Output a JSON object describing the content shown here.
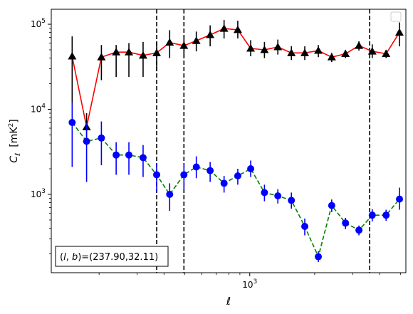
{
  "chart_data": {
    "type": "scatter",
    "xlabel": "ℓ",
    "xscale": "log",
    "xlim": [
      120,
      5300
    ],
    "xticks": [
      {
        "value": 1000,
        "base": "10",
        "exp": "3"
      }
    ],
    "ylabel": {
      "base": "C",
      "sub": "ℓ",
      "unit_pre": "[mK",
      "unit_sup": "2",
      "unit_post": "]"
    },
    "yscale": "log",
    "ylim": [
      120,
      150000
    ],
    "yticks": [
      {
        "value": 1000,
        "base": "10",
        "exp": "3"
      },
      {
        "value": 10000,
        "base": "10",
        "exp": "4"
      },
      {
        "value": 100000,
        "base": "10",
        "exp": "5"
      }
    ],
    "vlines": [
      370,
      495,
      3600
    ],
    "annotation": {
      "prefix": "(",
      "l": "l",
      "mid": ", ",
      "b": "b",
      "suffix": ")=(237.90,32.11)"
    },
    "legend": "top-right",
    "series": [
      {
        "marker": "triangle",
        "color": "#000000",
        "line_color": "#ff0000",
        "line_style": "solid",
        "x": [
          150,
          175,
          205,
          240,
          275,
          320,
          370,
          425,
          495,
          565,
          655,
          760,
          880,
          1010,
          1170,
          1350,
          1560,
          1800,
          2080,
          2400,
          2780,
          3210,
          3700,
          4290,
          4950
        ],
        "y": [
          42000,
          6200,
          41000,
          47000,
          47000,
          43000,
          46000,
          61000,
          56000,
          64000,
          75000,
          89000,
          86000,
          52000,
          50000,
          54000,
          46000,
          46000,
          49000,
          41000,
          45000,
          56000,
          48000,
          45000,
          80000
        ],
        "y_low": [
          12000,
          4000,
          22000,
          24000,
          24000,
          24000,
          28000,
          40000,
          41000,
          48000,
          55000,
          68000,
          68000,
          42000,
          40000,
          44000,
          38000,
          38000,
          41000,
          36000,
          40000,
          49000,
          40000,
          40000,
          55000
        ],
        "y_high": [
          72000,
          9000,
          57000,
          57000,
          60000,
          62000,
          62000,
          85000,
          75000,
          82000,
          97000,
          112000,
          110000,
          65000,
          62000,
          66000,
          55000,
          55000,
          57000,
          46000,
          50000,
          63000,
          58000,
          50000,
          105000
        ]
      },
      {
        "marker": "circle",
        "color": "#0000ff",
        "line_color": "#008000",
        "line_style": "dashed",
        "x": [
          150,
          175,
          205,
          240,
          275,
          320,
          370,
          425,
          495,
          565,
          655,
          760,
          880,
          1010,
          1170,
          1350,
          1560,
          1800,
          2080,
          2400,
          2780,
          3210,
          3700,
          4290,
          4950
        ],
        "y": [
          7000,
          4200,
          4600,
          2900,
          2900,
          2700,
          1700,
          1000,
          1700,
          2100,
          1900,
          1350,
          1650,
          2000,
          1050,
          960,
          850,
          420,
          185,
          740,
          460,
          380,
          570,
          570,
          880
        ],
        "y_low": [
          2100,
          1400,
          2200,
          1700,
          1700,
          1600,
          1050,
          640,
          1150,
          1550,
          1400,
          1050,
          1300,
          1600,
          830,
          780,
          680,
          330,
          160,
          620,
          390,
          330,
          480,
          490,
          660
        ],
        "y_high": [
          12000,
          6900,
          7200,
          4100,
          4100,
          3800,
          2300,
          1350,
          2300,
          2800,
          2400,
          1650,
          2000,
          2500,
          1300,
          1150,
          1050,
          520,
          215,
          870,
          530,
          430,
          670,
          660,
          1200
        ]
      }
    ]
  }
}
